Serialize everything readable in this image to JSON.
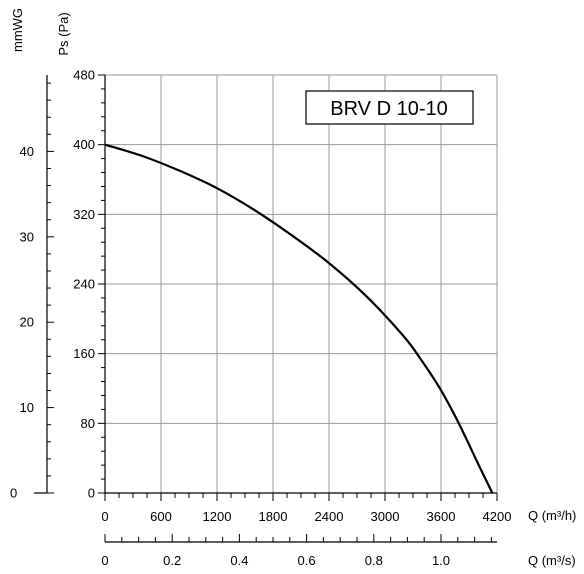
{
  "chart_data": {
    "type": "line",
    "model_label": "BRV D 10-10",
    "y_label_pa": "Ps (Pa)",
    "y_label_mmwg": "mmWG",
    "x_label_m3h": "Q (m³/h)",
    "x_label_m3s": "Q (m³/s)",
    "xlim_m3h": [
      0,
      4200
    ],
    "ylim_pa": [
      0,
      480
    ],
    "x_ticks_m3h": [
      "0",
      "600",
      "1200",
      "1800",
      "2400",
      "3000",
      "3600",
      "4200"
    ],
    "y_ticks_pa": [
      "0",
      "80",
      "160",
      "240",
      "320",
      "400",
      "480"
    ],
    "y_ticks_mmwg": [
      "0",
      "10",
      "20",
      "30",
      "40"
    ],
    "x_ticks_m3s": [
      "0",
      "0.2",
      "0.4",
      "0.6",
      "0.8",
      "1.0"
    ],
    "grid": true,
    "series": [
      {
        "x": [
          0,
          400,
          800,
          1200,
          1600,
          2000,
          2400,
          2800,
          3200,
          3400,
          3600,
          3800,
          4000,
          4150
        ],
        "y": [
          400,
          387,
          370,
          350,
          325,
          296,
          264,
          226,
          180,
          151,
          118,
          78,
          33,
          0
        ]
      }
    ]
  }
}
